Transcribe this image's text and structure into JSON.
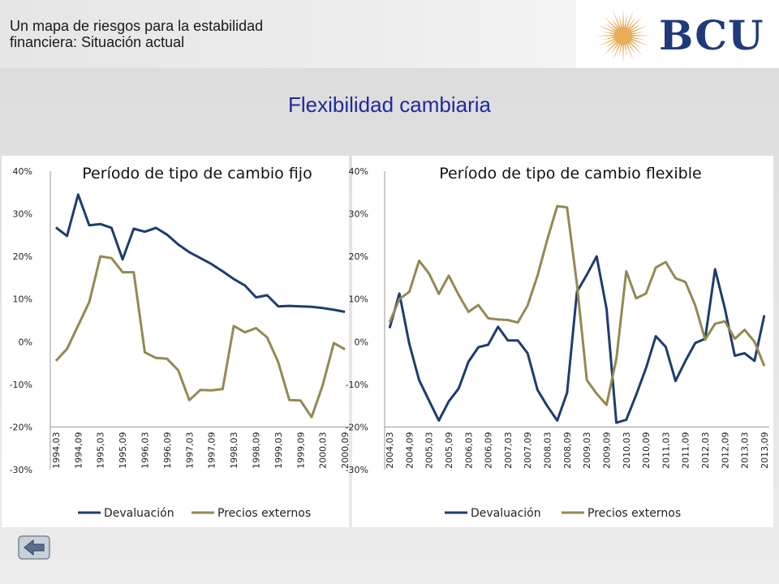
{
  "header": {
    "title_line1": "Un mapa de riesgos para la estabilidad",
    "title_line2": "financiera: Situación actual",
    "logo_text": "BCU"
  },
  "slide_title": "Flexibilidad  cambiaria",
  "chart_data": [
    {
      "type": "line",
      "title": "Período de tipo de cambio fijo",
      "xlabel": "",
      "ylabel": "",
      "ylim": [
        -0.3,
        0.4
      ],
      "y_ticks": [
        "40%",
        "30%",
        "20%",
        "10%",
        "0%",
        "-10%",
        "-20%",
        "-30%"
      ],
      "x": [
        "1994,03",
        "1994,06",
        "1994,09",
        "1994,12",
        "1995,03",
        "1995,06",
        "1995,09",
        "1995,12",
        "1996,03",
        "1996,06",
        "1996,09",
        "1996,12",
        "1997,03",
        "1997,06",
        "1997,09",
        "1997,12",
        "1998,03",
        "1998,06",
        "1998,09",
        "1998,12",
        "1999,03",
        "1999,06",
        "1999,09",
        "1999,12",
        "2000,03",
        "2000,06",
        "2000,09"
      ],
      "x_tick_labels": [
        "1994,03",
        "1994,09",
        "1995,03",
        "1995,09",
        "1996,03",
        "1996,09",
        "1997,03",
        "1997,09",
        "1998,03",
        "1998,09",
        "1999,03",
        "1999,09",
        "2000,03",
        "2000,09"
      ],
      "series": [
        {
          "name": "Devaluación",
          "color": "#1f3c6e",
          "values": [
            0.268,
            0.248,
            0.345,
            0.273,
            0.276,
            0.267,
            0.193,
            0.265,
            0.258,
            0.267,
            0.251,
            0.228,
            0.21,
            0.196,
            0.182,
            0.165,
            0.147,
            0.132,
            0.104,
            0.109,
            0.083,
            0.084,
            0.083,
            0.082,
            0.079,
            0.075,
            0.07
          ]
        },
        {
          "name": "Precios externos",
          "color": "#938953",
          "values": [
            -0.045,
            -0.017,
            0.038,
            0.093,
            0.2,
            0.196,
            0.163,
            0.163,
            -0.025,
            -0.038,
            -0.04,
            -0.067,
            -0.137,
            -0.113,
            -0.114,
            -0.111,
            0.037,
            0.022,
            0.032,
            0.01,
            -0.048,
            -0.137,
            -0.138,
            -0.177,
            -0.102,
            -0.003,
            -0.018
          ]
        }
      ],
      "legend": "bottom"
    },
    {
      "type": "line",
      "title": "Período de tipo de cambio flexible",
      "xlabel": "",
      "ylabel": "",
      "ylim": [
        -0.3,
        0.4
      ],
      "y_ticks": [
        "40%",
        "30%",
        "20%",
        "10%",
        "0%",
        "-10%",
        "-20%",
        "-30%"
      ],
      "x": [
        "2004,03",
        "2004,06",
        "2004,09",
        "2004,12",
        "2005,03",
        "2005,06",
        "2005,09",
        "2005,12",
        "2006,03",
        "2006,06",
        "2006,09",
        "2006,12",
        "2007,03",
        "2007,06",
        "2007,09",
        "2007,12",
        "2008,03",
        "2008,06",
        "2008,09",
        "2008,12",
        "2009,03",
        "2009,06",
        "2009,09",
        "2009,12",
        "2010,03",
        "2010,06",
        "2010,09",
        "2010,12",
        "2011,03",
        "2011,06",
        "2011,09",
        "2011,12",
        "2012,03",
        "2012,06",
        "2012,09",
        "2012,12",
        "2013,03",
        "2013,06",
        "2013,09"
      ],
      "x_tick_labels": [
        "2004,03",
        "2004,09",
        "2005,03",
        "2005,09",
        "2006,03",
        "2006,09",
        "2007,03",
        "2007,09",
        "2008,03",
        "2008,09",
        "2009,03",
        "2009,09",
        "2010,03",
        "2010,09",
        "2011,03",
        "2011,09",
        "2012,03",
        "2012,09",
        "2013,03",
        "2013,09"
      ],
      "series": [
        {
          "name": "Devaluación",
          "color": "#1f3c6e",
          "values": [
            0.032,
            0.113,
            -0.005,
            -0.09,
            -0.138,
            -0.185,
            -0.14,
            -0.11,
            -0.047,
            -0.013,
            -0.007,
            0.035,
            0.003,
            0.003,
            -0.027,
            -0.113,
            -0.151,
            -0.185,
            -0.12,
            0.117,
            0.157,
            0.2,
            0.077,
            -0.19,
            -0.183,
            -0.125,
            -0.062,
            0.013,
            -0.012,
            -0.092,
            -0.045,
            -0.003,
            0.007,
            0.17,
            0.078,
            -0.033,
            -0.027,
            -0.045,
            0.062
          ]
        },
        {
          "name": "Precios externos",
          "color": "#938953",
          "values": [
            0.045,
            0.1,
            0.117,
            0.19,
            0.16,
            0.112,
            0.155,
            0.11,
            0.07,
            0.086,
            0.055,
            0.052,
            0.051,
            0.045,
            0.085,
            0.155,
            0.24,
            0.318,
            0.315,
            0.135,
            -0.09,
            -0.122,
            -0.148,
            -0.04,
            0.165,
            0.102,
            0.113,
            0.174,
            0.187,
            0.149,
            0.14,
            0.085,
            0.005,
            0.042,
            0.048,
            0.007,
            0.028,
            0.0,
            -0.057
          ]
        }
      ],
      "legend": "bottom"
    }
  ]
}
